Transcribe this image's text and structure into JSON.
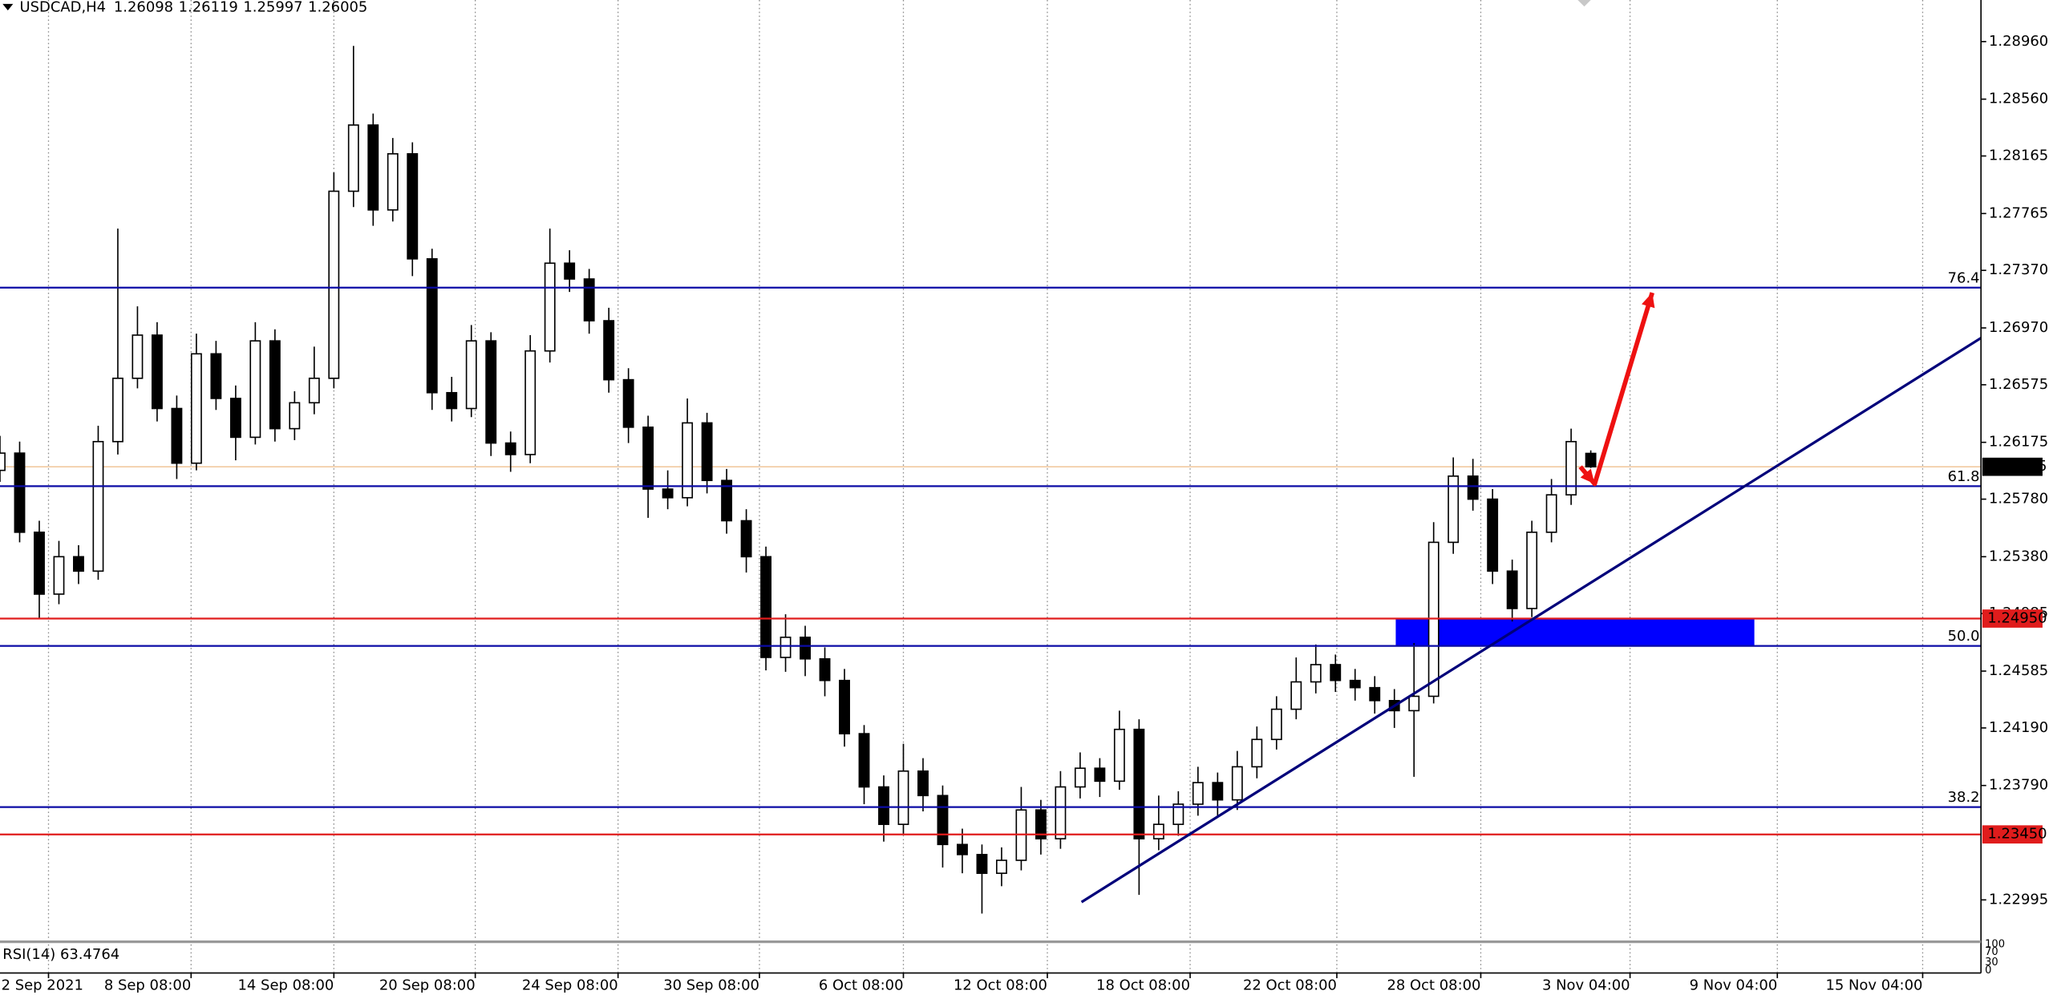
{
  "chart_data": {
    "type": "candlestick",
    "title": "USDCAD,H4",
    "candles": {
      "open": [
        1.2598,
        1.261,
        1.2555,
        1.2512,
        1.2538,
        1.2528,
        1.2618,
        1.2662,
        1.2692,
        1.2641,
        1.2603,
        1.2679,
        1.2648,
        1.2621,
        1.2688,
        1.2627,
        1.2645,
        1.2662,
        1.2792,
        1.2838,
        1.2779,
        1.2818,
        1.2745,
        1.2652,
        1.2641,
        1.2688,
        1.2617,
        1.2609,
        1.2681,
        1.2742,
        1.2731,
        1.2702,
        1.2661,
        1.2628,
        1.2585,
        1.2579,
        1.2631,
        1.2591,
        1.2563,
        1.2538,
        1.2468,
        1.2482,
        1.2467,
        1.2452,
        1.2415,
        1.2378,
        1.2352,
        1.2389,
        1.2372,
        1.2338,
        1.2331,
        1.2318,
        1.2327,
        1.2362,
        1.2342,
        1.2378,
        1.2391,
        1.2382,
        1.2418,
        1.2342,
        1.2352,
        1.2366,
        1.2381,
        1.2369,
        1.2392,
        1.2411,
        1.2432,
        1.2451,
        1.2463,
        1.2452,
        1.2447,
        1.2438,
        1.2431,
        1.2441,
        1.2548,
        1.2594,
        1.2578,
        1.2528,
        1.2502,
        1.2555,
        1.2581,
        1.26098
      ],
      "high": [
        1.2622,
        1.2618,
        1.2563,
        1.2549,
        1.2546,
        1.2629,
        1.2766,
        1.2712,
        1.2701,
        1.265,
        1.2693,
        1.2688,
        1.2657,
        1.2701,
        1.2696,
        1.2653,
        1.2684,
        1.2805,
        1.2893,
        1.2846,
        1.2829,
        1.2826,
        1.2752,
        1.2663,
        1.2699,
        1.2694,
        1.2625,
        1.2692,
        1.2766,
        1.2751,
        1.2738,
        1.2711,
        1.2669,
        1.2636,
        1.2598,
        1.2648,
        1.2638,
        1.2599,
        1.2571,
        1.2545,
        1.2498,
        1.249,
        1.2475,
        1.246,
        1.2421,
        1.2386,
        1.2408,
        1.2398,
        1.2379,
        1.2349,
        1.2338,
        1.2336,
        1.2378,
        1.2369,
        1.2389,
        1.2402,
        1.2398,
        1.2431,
        1.2425,
        1.2372,
        1.2375,
        1.2392,
        1.2388,
        1.2403,
        1.242,
        1.2441,
        1.2468,
        1.2477,
        1.247,
        1.246,
        1.2455,
        1.2446,
        1.2478,
        1.2562,
        1.2607,
        1.2606,
        1.2585,
        1.2536,
        1.2563,
        1.2592,
        1.2627,
        1.26119
      ],
      "low": [
        1.259,
        1.2548,
        1.2495,
        1.2505,
        1.2519,
        1.2522,
        1.2609,
        1.2655,
        1.2632,
        1.2592,
        1.2598,
        1.264,
        1.2605,
        1.2616,
        1.2618,
        1.2619,
        1.2637,
        1.2655,
        1.2781,
        1.2768,
        1.2771,
        1.2733,
        1.264,
        1.2632,
        1.2635,
        1.2608,
        1.2597,
        1.2603,
        1.2673,
        1.2722,
        1.2693,
        1.2652,
        1.2617,
        1.2565,
        1.2571,
        1.2573,
        1.2582,
        1.2554,
        1.2527,
        1.2459,
        1.2458,
        1.2455,
        1.2441,
        1.2406,
        1.2366,
        1.234,
        1.2345,
        1.2361,
        1.2322,
        1.2318,
        1.229,
        1.2309,
        1.232,
        1.2331,
        1.2335,
        1.237,
        1.2371,
        1.2376,
        1.2303,
        1.2334,
        1.2344,
        1.2358,
        1.2358,
        1.2362,
        1.2384,
        1.2404,
        1.2425,
        1.2443,
        1.2444,
        1.2438,
        1.2429,
        1.2419,
        1.2385,
        1.2436,
        1.254,
        1.257,
        1.2519,
        1.2493,
        1.2496,
        1.2548,
        1.2574,
        1.25997
      ],
      "close": [
        1.261,
        1.2555,
        1.2512,
        1.2538,
        1.2528,
        1.2618,
        1.2662,
        1.2692,
        1.2641,
        1.2603,
        1.2679,
        1.2648,
        1.2621,
        1.2688,
        1.2627,
        1.2645,
        1.2662,
        1.2792,
        1.2838,
        1.2779,
        1.2818,
        1.2745,
        1.2652,
        1.2641,
        1.2688,
        1.2617,
        1.2609,
        1.2681,
        1.2742,
        1.2731,
        1.2702,
        1.2661,
        1.2628,
        1.2585,
        1.2579,
        1.2631,
        1.2591,
        1.2563,
        1.2538,
        1.2468,
        1.2482,
        1.2467,
        1.2452,
        1.2415,
        1.2378,
        1.2352,
        1.2389,
        1.2372,
        1.2338,
        1.2331,
        1.2318,
        1.2327,
        1.2362,
        1.2342,
        1.2378,
        1.2391,
        1.2382,
        1.2418,
        1.2342,
        1.2352,
        1.2366,
        1.2381,
        1.2369,
        1.2392,
        1.2411,
        1.2432,
        1.2451,
        1.2463,
        1.2452,
        1.2447,
        1.2438,
        1.2431,
        1.2441,
        1.2548,
        1.2594,
        1.2578,
        1.2528,
        1.2502,
        1.2555,
        1.2581,
        1.2618,
        1.26005
      ]
    },
    "xlim": [
      0,
      100.87
    ],
    "xticks": [
      {
        "value": 2.47,
        "label": "2 Sep 2021"
      },
      {
        "value": 9.73,
        "label": "8 Sep 08:00"
      },
      {
        "value": 17,
        "label": "14 Sep 08:00"
      },
      {
        "value": 24.2,
        "label": "20 Sep 08:00"
      },
      {
        "value": 31.47,
        "label": "24 Sep 08:00"
      },
      {
        "value": 38.67,
        "label": "30 Sep 08:00"
      },
      {
        "value": 46,
        "label": "6 Oct 08:00"
      },
      {
        "value": 53.33,
        "label": "12 Oct 08:00"
      },
      {
        "value": 60.6,
        "label": "18 Oct 08:00"
      },
      {
        "value": 68.07,
        "label": "22 Oct 08:00"
      },
      {
        "value": 75.4,
        "label": "28 Oct 08:00"
      },
      {
        "value": 83,
        "label": "3 Nov 04:00"
      },
      {
        "value": 90.5,
        "label": "9 Nov 04:00"
      },
      {
        "value": 97.9,
        "label": "15 Nov 04:00"
      }
    ],
    "ylim": [
      1.22722,
      1.29249
    ],
    "yticks": [
      {
        "value": 1.2896,
        "label": "1.28960"
      },
      {
        "value": 1.2856,
        "label": "1.28560"
      },
      {
        "value": 1.28165,
        "label": "1.28165"
      },
      {
        "value": 1.27765,
        "label": "1.27765"
      },
      {
        "value": 1.2737,
        "label": "1.27370"
      },
      {
        "value": 1.2697,
        "label": "1.26970"
      },
      {
        "value": 1.26575,
        "label": "1.26575"
      },
      {
        "value": 1.26175,
        "label": "1.26175"
      },
      {
        "value": 1.2578,
        "label": "1.25780"
      },
      {
        "value": 1.2538,
        "label": "1.25380"
      },
      {
        "value": 1.24985,
        "label": "1.24985"
      },
      {
        "value": 1.24585,
        "label": "1.24585"
      },
      {
        "value": 1.2419,
        "label": "1.24190"
      },
      {
        "value": 1.2379,
        "label": "1.23790"
      },
      {
        "value": 1.22995,
        "label": "1.22995"
      }
    ],
    "grid": true,
    "levels": [
      {
        "value": 1.2725,
        "label": "76.4",
        "color": "#0c0ca6",
        "style": "fib"
      },
      {
        "value": 1.2587,
        "label": "61.8",
        "color": "#0c0ca6",
        "style": "fib"
      },
      {
        "value": 1.2476,
        "label": "50.0",
        "color": "#0c0ca6",
        "style": "fib"
      },
      {
        "value": 1.2364,
        "label": "38.2",
        "color": "#0c0ca6",
        "style": "fib"
      },
      {
        "value": 1.2495,
        "label": "1.24950",
        "color": "#e01c1c",
        "style": "price"
      },
      {
        "value": 1.2345,
        "label": "1.23450",
        "color": "#e01c1c",
        "style": "price"
      }
    ],
    "price_line_color": "#f2c9a0",
    "zone": {
      "x": [
        71.07,
        89.33
      ],
      "y": [
        1.2476,
        1.2495
      ],
      "color": "#0000ff"
    },
    "trendline": {
      "x": [
        55.07,
        100.87
      ],
      "y": [
        1.2298,
        1.269
      ],
      "color": "#00007a"
    },
    "arrow": {
      "x": [
        80.47,
        81.2,
        84.13
      ],
      "y": [
        1.26005,
        1.25886,
        1.27215
      ],
      "color": "#ee1111"
    },
    "rsi": {
      "label": "RSI(14) 63.4764",
      "ylim": [
        0,
        100
      ],
      "yticks": [
        100,
        70,
        30,
        0
      ]
    }
  }
}
